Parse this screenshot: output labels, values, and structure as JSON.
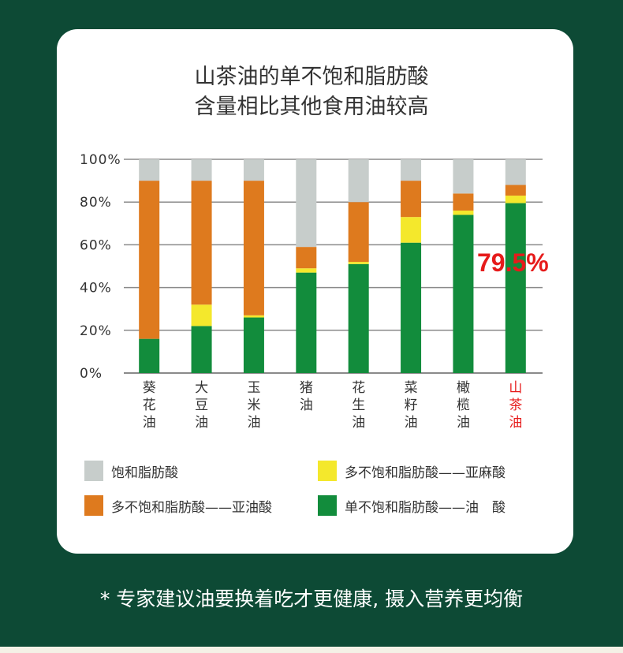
{
  "title": {
    "line1": "山茶油的单不饱和脂肪酸",
    "line2": "含量相比其他食用油较高"
  },
  "chart_data": {
    "type": "bar",
    "stacked": true,
    "categories": [
      "葵花油",
      "大豆油",
      "玉米油",
      "猪油",
      "花生油",
      "菜籽油",
      "橄榄油",
      "山茶油"
    ],
    "category_label_lines": [
      [
        "葵",
        "花",
        "油"
      ],
      [
        "大",
        "豆",
        "油"
      ],
      [
        "玉",
        "米",
        "油"
      ],
      [
        "猪",
        "油"
      ],
      [
        "花",
        "生",
        "油"
      ],
      [
        "菜",
        "籽",
        "油"
      ],
      [
        "橄",
        "榄",
        "油"
      ],
      [
        "山",
        "茶",
        "油"
      ]
    ],
    "highlight_category": "山茶油",
    "ylim": [
      0,
      100
    ],
    "yticks": [
      "0%",
      "20%",
      "40%",
      "60%",
      "80%",
      "100%"
    ],
    "series": [
      {
        "name": "单不饱和脂肪酸——油　酸",
        "color": "#128c3c",
        "values": [
          16,
          22,
          26,
          47,
          51,
          61,
          74,
          79.5
        ]
      },
      {
        "name": "多不饱和脂肪酸——亚麻酸",
        "color": "#f4e82c",
        "values": [
          0,
          10,
          1,
          2,
          1,
          12,
          2,
          3.5
        ]
      },
      {
        "name": "多不饱和脂肪酸——亚油酸",
        "color": "#de7a1e",
        "values": [
          74,
          58,
          63,
          10,
          28,
          17,
          8,
          5
        ]
      },
      {
        "name": "饱和脂肪酸",
        "color": "#c7cdcb",
        "values": [
          10,
          10,
          10,
          41,
          20,
          10,
          16,
          12
        ]
      }
    ],
    "annotation": {
      "text": "79.5%",
      "color": "#e61b1b"
    },
    "grid": true
  },
  "legend": [
    {
      "label": "饱和脂肪酸",
      "color": "#c7cdcb"
    },
    {
      "label": "多不饱和脂肪酸——亚麻酸",
      "color": "#f4e82c"
    },
    {
      "label": "多不饱和脂肪酸——亚油酸",
      "color": "#de7a1e"
    },
    {
      "label": "单不饱和脂肪酸——油　酸",
      "color": "#128c3c"
    }
  ],
  "footer": "* 专家建议油要换着吃才更健康, 摄入营养更均衡"
}
